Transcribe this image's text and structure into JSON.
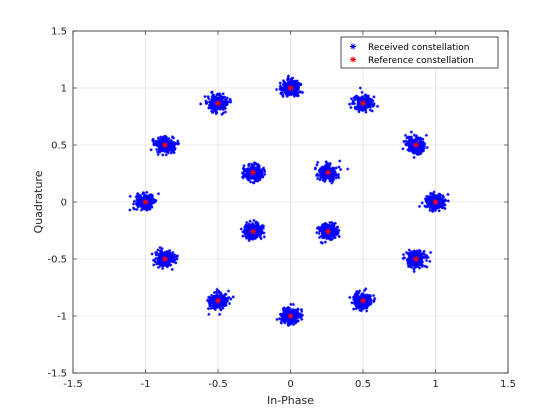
{
  "chart_data": {
    "type": "scatter",
    "title": "",
    "xlabel": "In-Phase",
    "ylabel": "Quadrature",
    "xlim": [
      -1.5,
      1.5
    ],
    "ylim": [
      -1.5,
      1.5
    ],
    "xticks": [
      "-1.5",
      "-1",
      "-0.5",
      "0",
      "0.5",
      "1",
      "1.5"
    ],
    "yticks": [
      "-1.5",
      "-1",
      "-0.5",
      "0",
      "0.5",
      "1",
      "1.5"
    ],
    "grid": true,
    "legend_position": "top-right",
    "series": [
      {
        "name": "Received constellation",
        "marker": "asterisk",
        "color": "#0000ff",
        "x": [
          1,
          0.866,
          0.5,
          0,
          -0.5,
          -0.866,
          -1,
          -0.866,
          -0.5,
          0,
          0.5,
          0.866,
          0.259,
          -0.259,
          -0.259,
          0.259
        ],
        "y": [
          0,
          0.5,
          0.866,
          1,
          0.866,
          0.5,
          0,
          -0.5,
          -0.866,
          -1,
          -0.866,
          -0.5,
          0.259,
          0.259,
          -0.259,
          -0.259
        ]
      },
      {
        "name": "Reference constellation",
        "marker": "asterisk",
        "color": "#ff0000",
        "x": [
          1,
          0.866,
          0.5,
          0,
          -0.5,
          -0.866,
          -1,
          -0.866,
          -0.5,
          0,
          0.5,
          0.866,
          0.259,
          -0.259,
          -0.259,
          0.259
        ],
        "y": [
          0,
          0.5,
          0.866,
          1,
          0.866,
          0.5,
          0,
          -0.5,
          -0.866,
          -1,
          -0.866,
          -0.5,
          0.259,
          0.259,
          -0.259,
          -0.259
        ]
      }
    ]
  }
}
